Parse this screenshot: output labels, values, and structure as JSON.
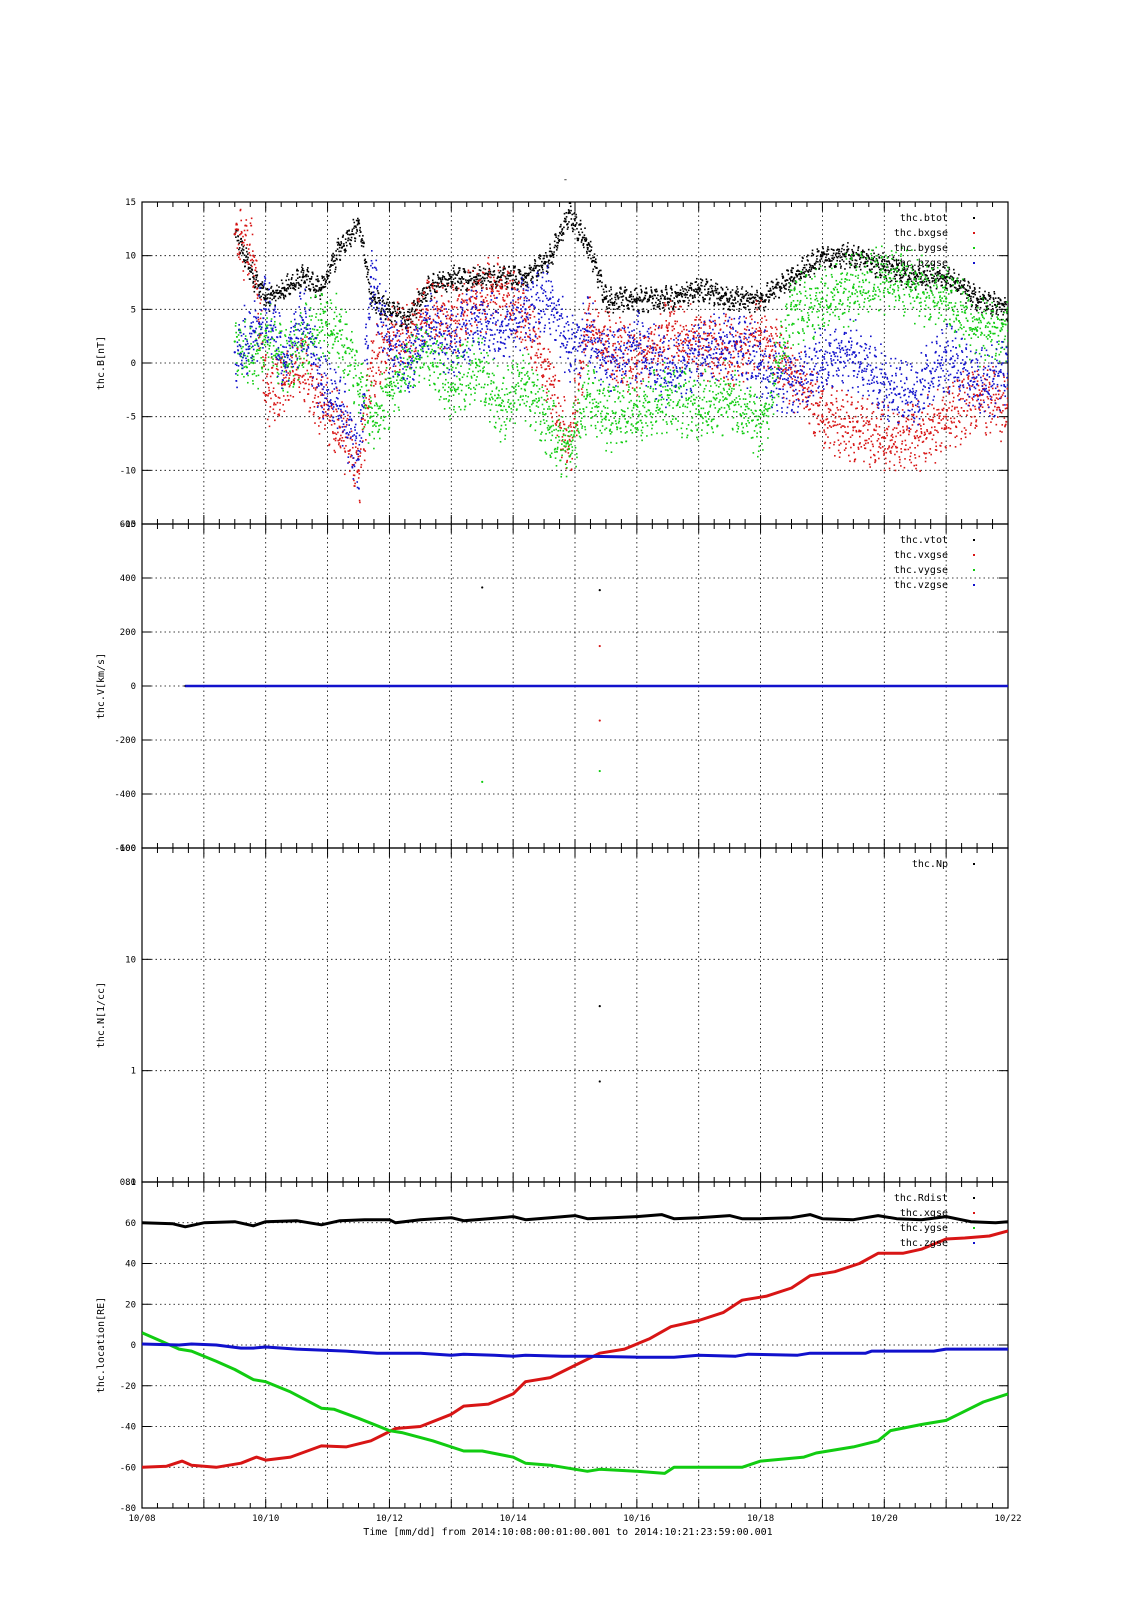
{
  "page_title": "-",
  "time_axis": {
    "start_day": 8,
    "end_day": 22,
    "tick_labels": [
      "10/08",
      "10/10",
      "10/12",
      "10/14",
      "10/16",
      "10/18",
      "10/20",
      "10/22"
    ],
    "caption": "Time [mm/dd]  from 2014:10:08:00:01:00.001  to  2014:10:21:23:59:00.001"
  },
  "colors": {
    "black": "#000000",
    "red": "#d81515",
    "green": "#11cc11",
    "blue": "#1111cc"
  },
  "chart_data": [
    {
      "type": "scatter",
      "ylabel": "thc.B[nT]",
      "ylim": [
        -15,
        15
      ],
      "yticks": [
        -15,
        -10,
        -5,
        0,
        5,
        10,
        15
      ],
      "grid": true,
      "legend_position": "top-right",
      "series": [
        {
          "name": "thc.btot",
          "color": "#000000",
          "x": [
            9.5,
            9.8,
            10.0,
            10.3,
            10.6,
            10.9,
            11.2,
            11.5,
            11.7,
            12.0,
            12.3,
            12.6,
            13.0,
            13.4,
            13.8,
            14.2,
            14.6,
            14.9,
            15.2,
            15.5,
            16.0,
            16.5,
            17.0,
            17.5,
            18.0,
            18.5,
            19.0,
            19.5,
            20.0,
            20.5,
            21.0,
            21.5,
            22.0
          ],
          "y": [
            12,
            8,
            6,
            7,
            8,
            7,
            11,
            13,
            6,
            5,
            4,
            7,
            8,
            8,
            8,
            8,
            10,
            14,
            11,
            6,
            6,
            6,
            7,
            6,
            6,
            8,
            10,
            10,
            9,
            8,
            8,
            6,
            5
          ]
        },
        {
          "name": "thc.bxgse",
          "color": "#d81515",
          "x": [
            9.5,
            9.8,
            10.0,
            10.3,
            10.6,
            10.9,
            11.2,
            11.5,
            11.7,
            12.0,
            12.3,
            12.6,
            13.0,
            13.4,
            13.8,
            14.2,
            14.6,
            14.9,
            15.2,
            15.5,
            16.0,
            16.5,
            17.0,
            17.5,
            18.0,
            18.5,
            19.0,
            19.5,
            20.0,
            20.5,
            21.0,
            21.5,
            22.0
          ],
          "y": [
            12,
            10,
            -3,
            -2,
            0,
            -4,
            -6,
            -10,
            0,
            2,
            3,
            5,
            4,
            6,
            7,
            4,
            -2,
            -8,
            4,
            2,
            0,
            3,
            2,
            1,
            3,
            -1,
            -5,
            -6,
            -7,
            -7,
            -5,
            -3,
            -4
          ]
        },
        {
          "name": "thc.bygse",
          "color": "#11cc11",
          "x": [
            9.5,
            9.8,
            10.0,
            10.3,
            10.6,
            10.9,
            11.2,
            11.5,
            11.7,
            12.0,
            12.3,
            12.6,
            13.0,
            13.4,
            13.8,
            14.2,
            14.6,
            14.9,
            15.2,
            15.5,
            16.0,
            16.5,
            17.0,
            17.5,
            18.0,
            18.5,
            19.0,
            19.5,
            20.0,
            20.5,
            21.0,
            21.5,
            22.0
          ],
          "y": [
            2,
            0,
            3,
            0,
            2,
            4,
            3,
            -2,
            -5,
            -3,
            0,
            1,
            -2,
            0,
            -4,
            -2,
            -6,
            -8,
            -3,
            -5,
            -4,
            -3,
            -4,
            -3,
            -6,
            5,
            6,
            7,
            8,
            7,
            6,
            3,
            3
          ]
        },
        {
          "name": "thc.bzgse",
          "color": "#1111cc",
          "x": [
            9.5,
            9.8,
            10.0,
            10.3,
            10.6,
            10.9,
            11.2,
            11.5,
            11.7,
            12.0,
            12.3,
            12.6,
            13.0,
            13.4,
            13.8,
            14.2,
            14.6,
            14.9,
            15.2,
            15.5,
            16.0,
            16.5,
            17.0,
            17.5,
            18.0,
            18.5,
            19.0,
            19.5,
            20.0,
            20.5,
            21.0,
            21.5,
            22.0
          ],
          "y": [
            1,
            3,
            5,
            0,
            4,
            -2,
            -4,
            -9,
            8,
            2,
            0,
            4,
            2,
            4,
            3,
            5,
            6,
            1,
            3,
            0,
            2,
            -1,
            1,
            2,
            0,
            -2,
            0,
            1,
            -2,
            -3,
            1,
            -2,
            -1
          ]
        }
      ]
    },
    {
      "type": "scatter",
      "ylabel": "thc.V[km/s]",
      "ylim": [
        -600,
        600
      ],
      "yticks": [
        -600,
        -400,
        -200,
        0,
        200,
        400,
        600
      ],
      "grid": true,
      "legend_position": "top-right",
      "series": [
        {
          "name": "thc.vtot",
          "color": "#000000",
          "x": [
            8.7,
            13.5,
            15.4
          ],
          "y": [
            0,
            365,
            355
          ]
        },
        {
          "name": "thc.vxgse",
          "color": "#d81515",
          "x": [
            15.4,
            15.4
          ],
          "y": [
            148,
            -128
          ]
        },
        {
          "name": "thc.vygse",
          "color": "#11cc11",
          "x": [
            13.5,
            15.4
          ],
          "y": [
            -355,
            -315
          ]
        },
        {
          "name": "thc.vzgse",
          "color": "#1111cc",
          "x": [
            8.7,
            22.0
          ],
          "y": [
            0,
            0
          ]
        }
      ]
    },
    {
      "type": "scatter",
      "ylabel": "thc.N[1/cc]",
      "yscale": "log",
      "ylim": [
        0.1,
        100
      ],
      "yticks": [
        0.1,
        1,
        10,
        100
      ],
      "ytick_labels": [
        "0.1",
        "1",
        "10",
        "100"
      ],
      "grid": true,
      "legend_position": "top-right",
      "series": [
        {
          "name": "thc.Np",
          "color": "#000000",
          "x": [
            15.4,
            15.4
          ],
          "y": [
            3.8,
            0.8
          ]
        }
      ]
    },
    {
      "type": "line",
      "ylabel": "thc.location[RE]",
      "ylim": [
        -80,
        80
      ],
      "yticks": [
        -80,
        -60,
        -40,
        -20,
        0,
        20,
        40,
        60,
        80
      ],
      "grid": true,
      "legend_position": "top-right",
      "series": [
        {
          "name": "thc.Rdist",
          "color": "#000000",
          "x": [
            8.0,
            8.5,
            8.7,
            9.0,
            9.5,
            9.8,
            10.0,
            10.5,
            10.9,
            11.2,
            11.6,
            12.0,
            12.1,
            12.5,
            13.0,
            13.2,
            13.6,
            14.0,
            14.2,
            14.6,
            15.0,
            15.2,
            15.6,
            16.0,
            16.4,
            16.6,
            17.0,
            17.5,
            17.7,
            18.0,
            18.5,
            18.8,
            19.0,
            19.5,
            19.9,
            20.2,
            20.6,
            21.0,
            21.4,
            21.8,
            22.0
          ],
          "y": [
            60,
            59.5,
            58,
            60,
            60.5,
            58.5,
            60.5,
            61,
            59,
            61,
            61.5,
            61.5,
            60,
            61.5,
            62.5,
            61,
            62,
            63,
            61.5,
            62.5,
            63.5,
            62,
            62.5,
            63,
            64,
            62,
            62.5,
            63.5,
            62,
            62,
            62.5,
            64,
            62,
            61.5,
            63.5,
            62,
            61.5,
            63,
            60.5,
            60,
            60.5
          ]
        },
        {
          "name": "thc.xgse",
          "color": "#d81515",
          "x": [
            8.0,
            8.4,
            8.65,
            8.8,
            9.2,
            9.6,
            9.85,
            10.0,
            10.4,
            10.9,
            11.3,
            11.7,
            12.1,
            12.5,
            13.0,
            13.2,
            13.6,
            14.0,
            14.2,
            14.6,
            15.0,
            15.4,
            15.8,
            16.2,
            16.55,
            17.0,
            17.4,
            17.7,
            18.1,
            18.5,
            18.8,
            19.2,
            19.6,
            19.9,
            20.3,
            20.6,
            21.0,
            21.3,
            21.7,
            22.0
          ],
          "y": [
            -60,
            -59.5,
            -57,
            -59,
            -60,
            -58,
            -55,
            -56.5,
            -55,
            -49.5,
            -50,
            -47,
            -41,
            -40,
            -34,
            -30,
            -29,
            -24,
            -18,
            -16,
            -10,
            -4,
            -2,
            3,
            9,
            12,
            16,
            22,
            24,
            28,
            34,
            36,
            40,
            45,
            45,
            47,
            52,
            52.5,
            53.5,
            56
          ]
        },
        {
          "name": "thc.ygse",
          "color": "#11cc11",
          "x": [
            8.0,
            8.3,
            8.6,
            8.8,
            9.2,
            9.5,
            9.8,
            10.0,
            10.4,
            10.9,
            11.1,
            11.5,
            12.0,
            12.2,
            12.7,
            13.2,
            13.5,
            14.0,
            14.2,
            14.6,
            15.2,
            15.4,
            16.0,
            16.45,
            16.6,
            17.0,
            17.7,
            18.0,
            18.7,
            18.9,
            19.5,
            19.9,
            20.1,
            20.6,
            21.0,
            21.2,
            21.6,
            22.0
          ],
          "y": [
            6,
            2,
            -2,
            -3,
            -8,
            -12,
            -17,
            -18,
            -23,
            -31,
            -31.5,
            -36,
            -42,
            -43,
            -47,
            -52,
            -52,
            -55,
            -58,
            -59,
            -62,
            -61,
            -62,
            -63,
            -60,
            -60,
            -60,
            -57,
            -55,
            -53,
            -50,
            -47,
            -42,
            -39,
            -37,
            -34,
            -28,
            -24
          ]
        },
        {
          "name": "thc.zgse",
          "color": "#1111cc",
          "x": [
            8.0,
            8.6,
            8.8,
            9.2,
            9.6,
            9.8,
            10.0,
            10.5,
            10.9,
            11.3,
            11.8,
            12.0,
            12.5,
            13.0,
            13.2,
            13.7,
            14.0,
            14.2,
            14.8,
            15.2,
            16.0,
            16.6,
            17.0,
            17.6,
            17.8,
            18.6,
            18.8,
            19.7,
            19.8,
            20.8,
            21.0,
            22.0
          ],
          "y": [
            0.5,
            0,
            0.5,
            0,
            -1.5,
            -1.5,
            -1,
            -2,
            -2.5,
            -3,
            -4,
            -4,
            -4,
            -5,
            -4.5,
            -5,
            -5.5,
            -5,
            -5.5,
            -5.5,
            -6,
            -6,
            -5,
            -5.5,
            -4.5,
            -5,
            -4,
            -4,
            -3,
            -3,
            -2,
            -2
          ]
        }
      ]
    }
  ]
}
